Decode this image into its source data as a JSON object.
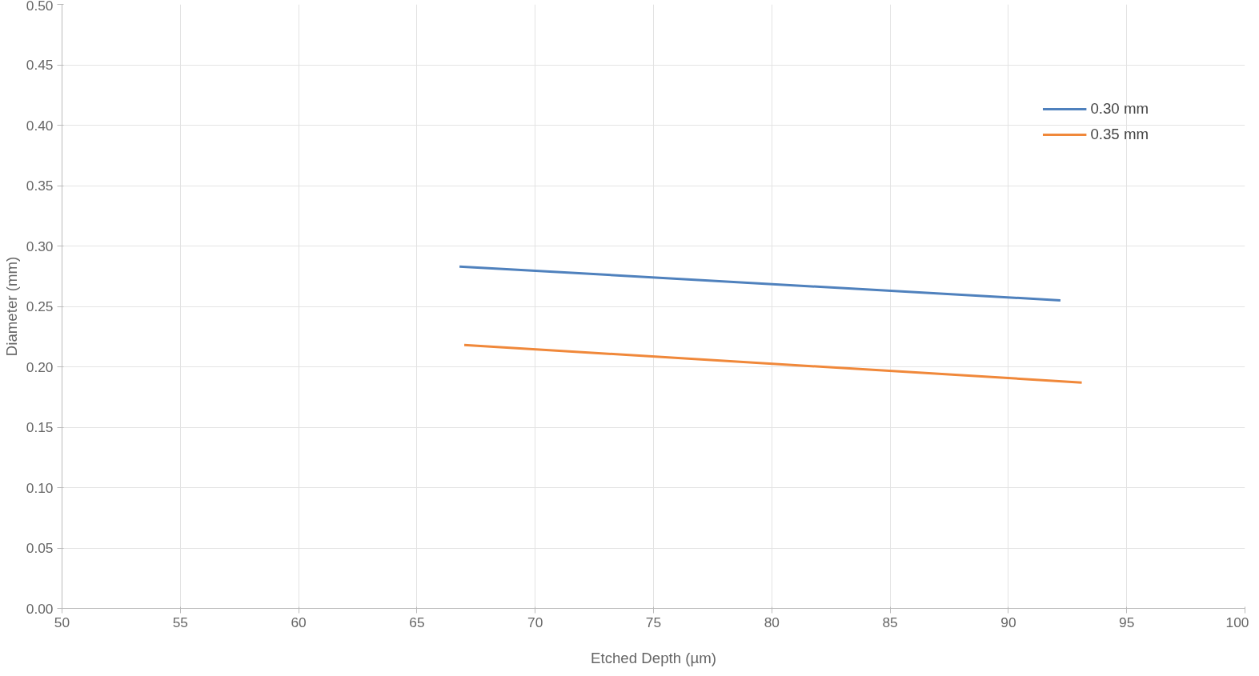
{
  "chart_data": {
    "type": "line",
    "xlabel": "Etched Depth (µm)",
    "ylabel": "Diameter (mm)",
    "xlim": [
      50,
      100
    ],
    "xticks": [
      50,
      55,
      60,
      65,
      70,
      75,
      80,
      85,
      90,
      95,
      100
    ],
    "ylim": [
      0,
      0.5
    ],
    "yticks": [
      {
        "value": 0,
        "label": "0.00"
      },
      {
        "value": 0.05,
        "label": "0.05"
      },
      {
        "value": 0.1,
        "label": "0.10"
      },
      {
        "value": 0.15,
        "label": "0.15"
      },
      {
        "value": 0.2,
        "label": "0.20"
      },
      {
        "value": 0.25,
        "label": "0.25"
      },
      {
        "value": 0.3,
        "label": "0.30"
      },
      {
        "value": 0.35,
        "label": "0.35"
      },
      {
        "value": 0.4,
        "label": "0.40"
      },
      {
        "value": 0.45,
        "label": "0.45"
      },
      {
        "value": 0.5,
        "label": "0.50"
      }
    ],
    "grid": true,
    "legend": "top right",
    "line_style": "solid",
    "series": [
      {
        "name": "0.30 mm",
        "color": "#4f81bd",
        "x": [
          66.8,
          92.2
        ],
        "values": [
          0.283,
          0.255
        ]
      },
      {
        "name": "0.35 mm",
        "color": "#f0883a",
        "x": [
          67.0,
          93.1
        ],
        "values": [
          0.218,
          0.187
        ]
      }
    ]
  }
}
